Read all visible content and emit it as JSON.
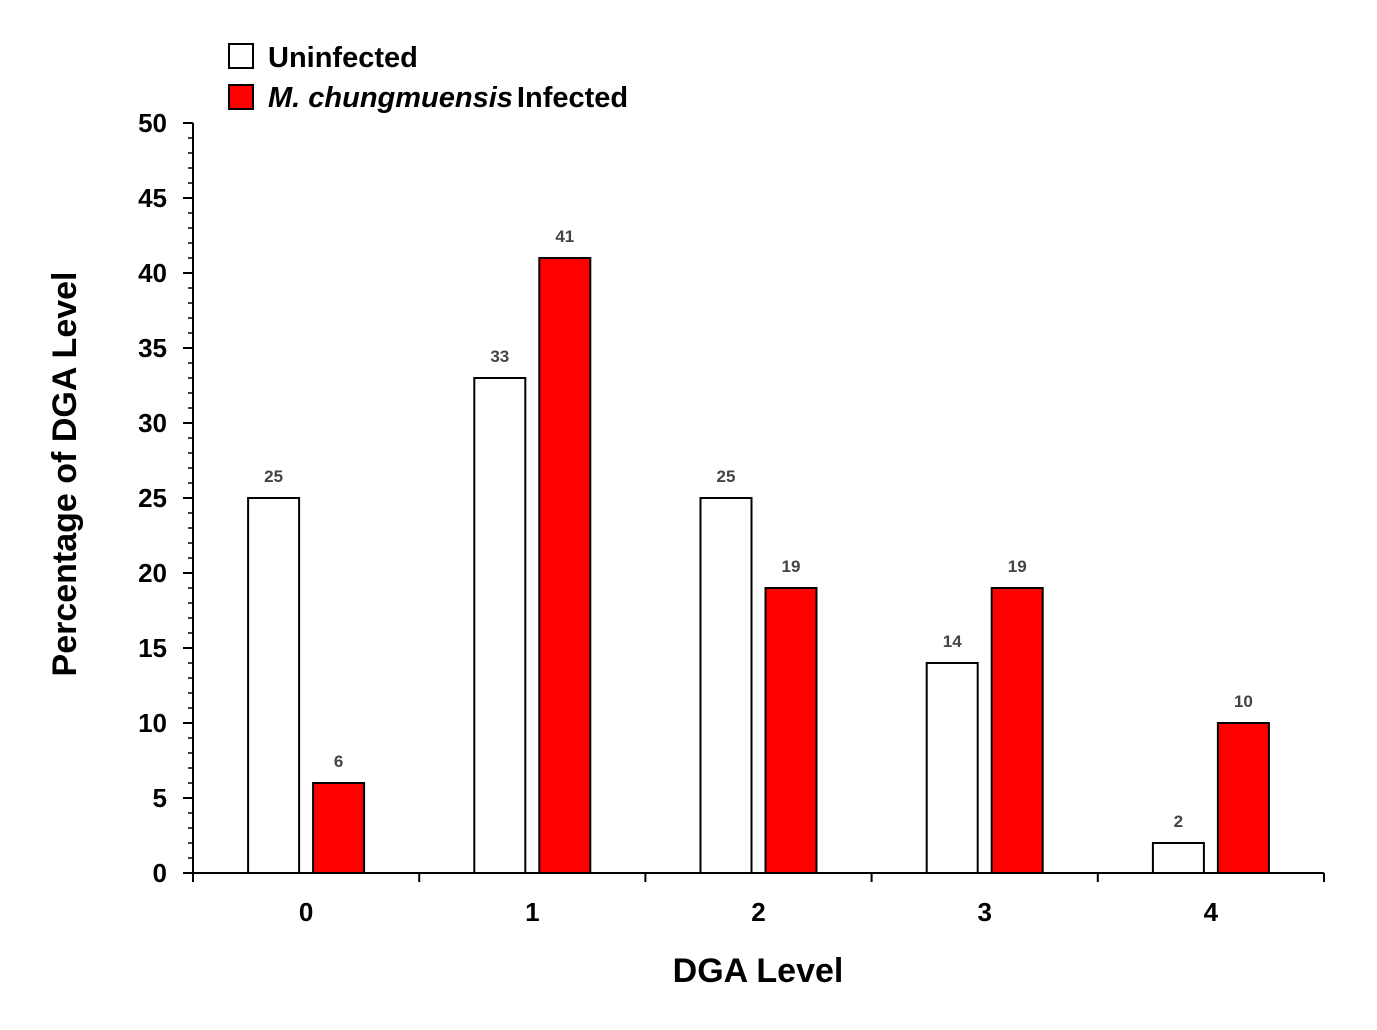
{
  "chart_data": {
    "type": "bar",
    "title": "",
    "xlabel": "DGA Level",
    "ylabel": "Percentage of DGA Level",
    "categories": [
      "0",
      "1",
      "2",
      "3",
      "4"
    ],
    "ylim": [
      0,
      50
    ],
    "yticks": [
      0,
      5,
      10,
      15,
      20,
      25,
      30,
      35,
      40,
      45,
      50
    ],
    "grid": false,
    "legend_position": "top-left",
    "series": [
      {
        "name": "Uninfected",
        "name_italic": "",
        "name_rest": "Uninfected",
        "color": "#ffffff",
        "values": [
          25,
          33,
          25,
          14,
          2
        ]
      },
      {
        "name": "M. chungmuensis Infected",
        "name_italic": "M. chungmuensis",
        "name_rest": "Infected",
        "color": "#ff0000",
        "values": [
          6,
          41,
          19,
          19,
          10
        ]
      }
    ]
  }
}
